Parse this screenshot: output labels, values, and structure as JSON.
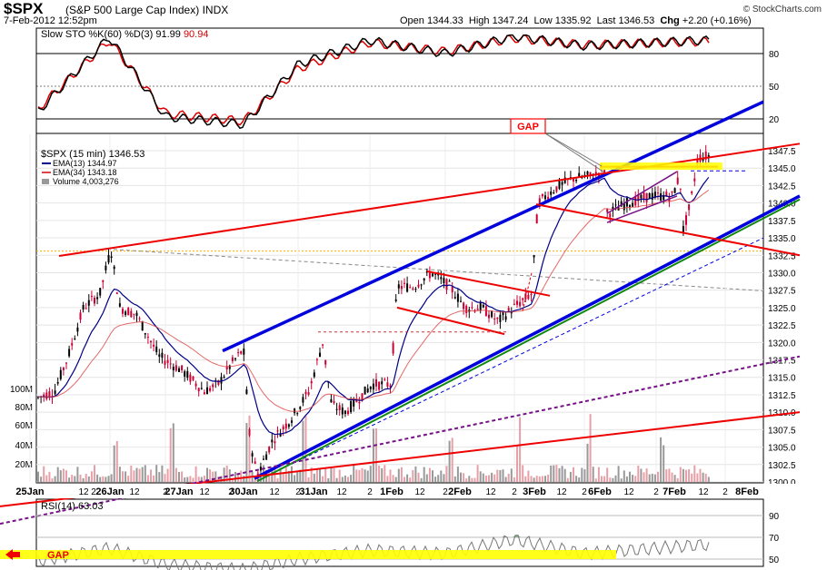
{
  "header": {
    "symbol": "$SPX",
    "name": "(S&P 500 Large Cap Index)",
    "exchange": "INDX",
    "date": "7-Feb-2012 12:52pm",
    "open_label": "Open",
    "open": "1344.33",
    "high_label": "High",
    "high": "1347.24",
    "low_label": "Low",
    "low": "1335.92",
    "last_label": "Last",
    "last": "1346.53",
    "chg_label": "Chg",
    "chg": "+2.20 (+0.16%)",
    "brand": "© StockCharts.com"
  },
  "sto_panel": {
    "legend": "Slow STO %K(60) %D(3)",
    "k": "91.99",
    "d": "90.94",
    "levels": [
      80,
      50,
      20
    ]
  },
  "price_panel": {
    "title": "$SPX (15 min)",
    "last": "1346.53",
    "ema13_label": "EMA(13)",
    "ema13": "1344.97",
    "ema34_label": "EMA(34)",
    "ema34": "1343.18",
    "volume_label": "Volume",
    "volume": "4,003,276",
    "annotation": "GAP",
    "price_ticks": [
      "1347.5",
      "1345.0",
      "1342.5",
      "1340.0",
      "1337.5",
      "1335.0",
      "1332.5",
      "1330.0",
      "1327.5",
      "1325.0",
      "1322.5",
      "1320.0",
      "1317.5",
      "1315.0",
      "1312.5",
      "1310.0",
      "1307.5",
      "1305.0",
      "1302.5",
      "1300.0"
    ],
    "volume_ticks": [
      "100M",
      "80M",
      "60M",
      "40M",
      "20M"
    ]
  },
  "x_axis": {
    "labels": [
      "25Jan",
      "12",
      "2",
      "26Jan",
      "12",
      "2",
      "27Jan",
      "12",
      "2",
      "30Jan",
      "12",
      "2",
      "31Jan",
      "12",
      "2",
      "1Feb",
      "12",
      "2",
      "2Feb",
      "12",
      "2",
      "3Feb",
      "12",
      "2",
      "6Feb",
      "12",
      "2",
      "7Feb",
      "12",
      "2",
      "8Feb"
    ]
  },
  "rsi_panel": {
    "legend": "RSI(14)",
    "value": "63.03",
    "levels": [
      90,
      70,
      50
    ],
    "annotation": "GAP"
  },
  "colors": {
    "price_up": "#000000",
    "price_down": "#cc0033",
    "ema13": "#000088",
    "ema34": "#dd4444",
    "channel": "#0000dd",
    "trend_red": "#ee0000",
    "trend_green": "#118811",
    "trend_purple": "#771188",
    "highlight": "#ffff00"
  },
  "chart_data": [
    {
      "type": "line",
      "title": "Slow STO %K(60) %D(3)",
      "x": [
        "25Jan",
        "26Jan",
        "27Jan",
        "30Jan",
        "31Jan",
        "1Feb",
        "2Feb",
        "3Feb",
        "6Feb",
        "7Feb"
      ],
      "series": [
        {
          "name": "%K(60)",
          "values": [
            25,
            95,
            22,
            15,
            70,
            92,
            80,
            96,
            87,
            91.99
          ]
        },
        {
          "name": "%D(3)",
          "values": [
            28,
            92,
            25,
            18,
            66,
            90,
            82,
            94,
            88,
            90.94
          ]
        }
      ],
      "ylim": [
        0,
        100
      ]
    },
    {
      "type": "line",
      "title": "$SPX (15 min)",
      "x": [
        "25Jan",
        "26Jan",
        "27Jan",
        "30Jan",
        "31Jan",
        "1Feb",
        "2Feb",
        "3Feb",
        "6Feb",
        "7Feb"
      ],
      "series": [
        {
          "name": "$SPX (15 min)",
          "values": [
            1312,
            1326,
            1314,
            1303,
            1312,
            1327,
            1326,
            1343,
            1344,
            1346.53
          ]
        },
        {
          "name": "EMA(13)",
          "values": [
            1312,
            1324,
            1315,
            1305,
            1311,
            1325,
            1326,
            1342,
            1343,
            1344.97
          ]
        },
        {
          "name": "EMA(34)",
          "values": [
            1312,
            1320,
            1317,
            1309,
            1310,
            1320,
            1325,
            1338,
            1341,
            1343.18
          ]
        }
      ],
      "ylim": [
        1300,
        1348
      ]
    },
    {
      "type": "line",
      "title": "RSI(14)",
      "x": [
        "25Jan",
        "26Jan",
        "27Jan",
        "30Jan",
        "31Jan",
        "1Feb",
        "2Feb",
        "3Feb",
        "6Feb",
        "7Feb"
      ],
      "series": [
        {
          "name": "RSI(14)",
          "values": [
            48,
            60,
            45,
            40,
            50,
            58,
            55,
            68,
            55,
            63.03
          ]
        }
      ],
      "ylim": [
        40,
        95
      ]
    }
  ]
}
